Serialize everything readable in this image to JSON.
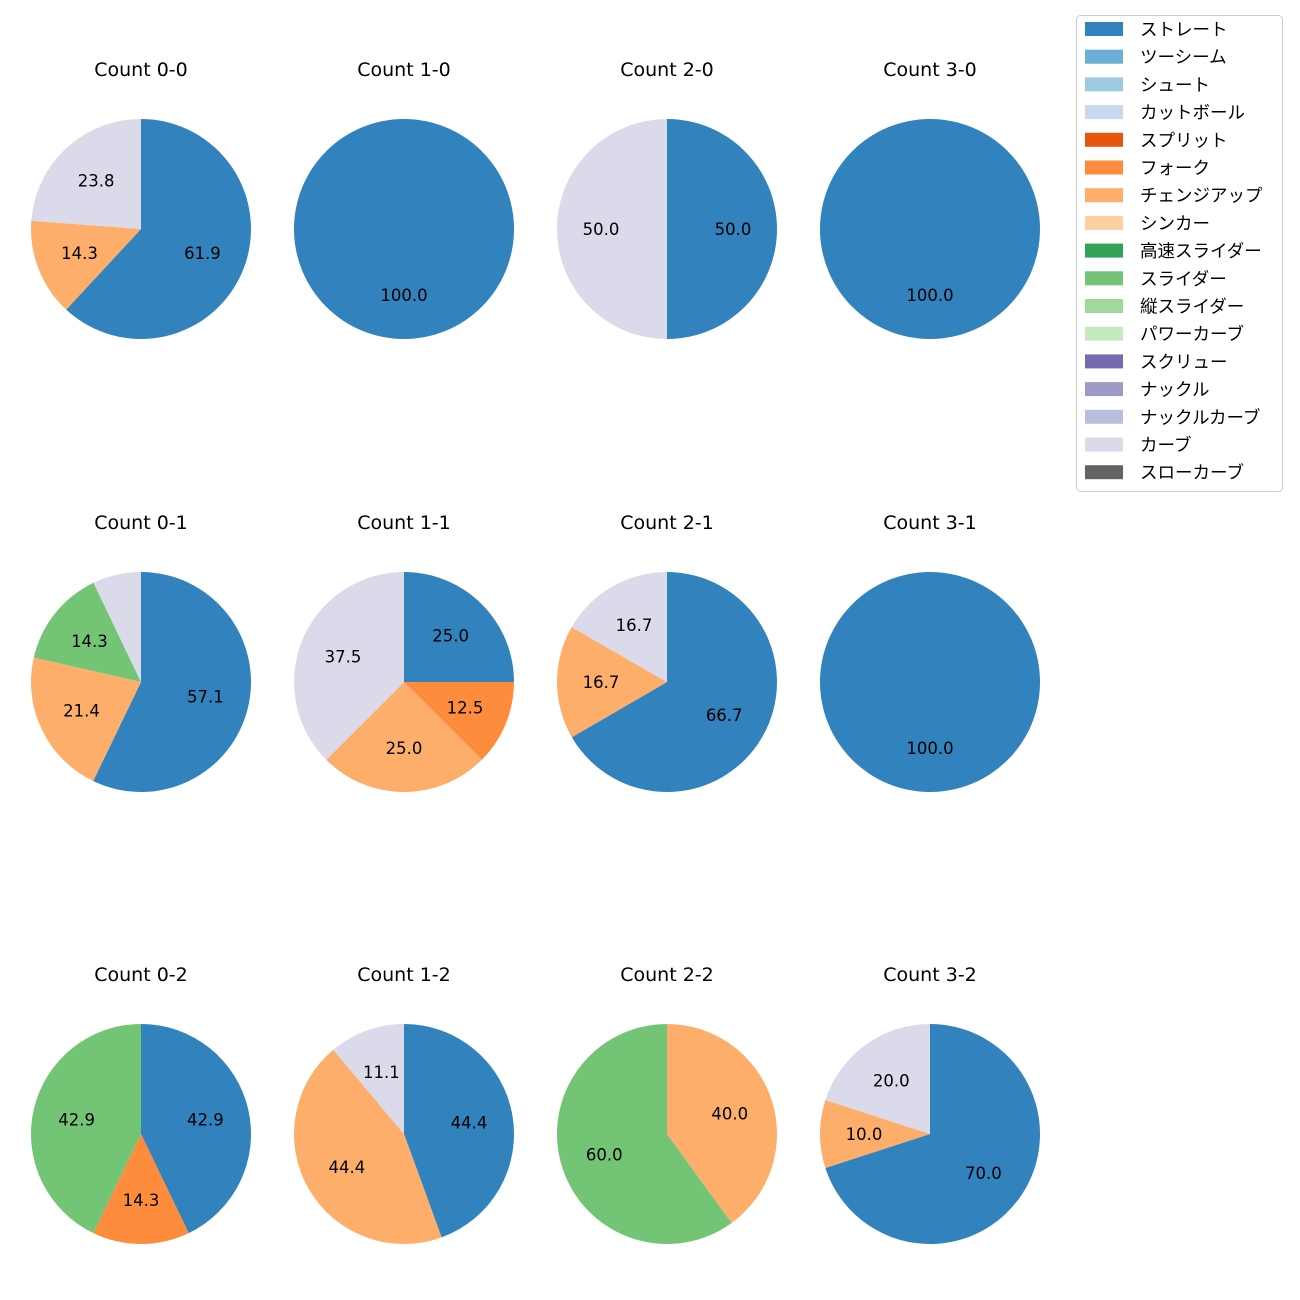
{
  "legend": {
    "items": [
      {
        "label": "ストレート",
        "color": "#3182bd"
      },
      {
        "label": "ツーシーム",
        "color": "#6baed6"
      },
      {
        "label": "シュート",
        "color": "#9ecae1"
      },
      {
        "label": "カットボール",
        "color": "#c6dbef"
      },
      {
        "label": "スプリット",
        "color": "#e6550d"
      },
      {
        "label": "フォーク",
        "color": "#fd8d3c"
      },
      {
        "label": "チェンジアップ",
        "color": "#fdae6b"
      },
      {
        "label": "シンカー",
        "color": "#fdd0a2"
      },
      {
        "label": "高速スライダー",
        "color": "#31a354"
      },
      {
        "label": "スライダー",
        "color": "#74c476"
      },
      {
        "label": "縦スライダー",
        "color": "#a1d99b"
      },
      {
        "label": "パワーカーブ",
        "color": "#c7e9c0"
      },
      {
        "label": "スクリュー",
        "color": "#756bb1"
      },
      {
        "label": "ナックル",
        "color": "#9e9ac8"
      },
      {
        "label": "ナックルカーブ",
        "color": "#bcbddc"
      },
      {
        "label": "カーブ",
        "color": "#dadaeb"
      },
      {
        "label": "スローカーブ",
        "color": "#636363"
      }
    ]
  },
  "chart_data": [
    {
      "type": "pie",
      "title": "Count 0-0",
      "slices": [
        {
          "category": "ストレート",
          "value": 61.9
        },
        {
          "category": "チェンジアップ",
          "value": 14.3
        },
        {
          "category": "カーブ",
          "value": 23.8
        }
      ]
    },
    {
      "type": "pie",
      "title": "Count 1-0",
      "slices": [
        {
          "category": "ストレート",
          "value": 100.0
        }
      ]
    },
    {
      "type": "pie",
      "title": "Count 2-0",
      "slices": [
        {
          "category": "ストレート",
          "value": 50.0
        },
        {
          "category": "カーブ",
          "value": 50.0
        }
      ]
    },
    {
      "type": "pie",
      "title": "Count 3-0",
      "slices": [
        {
          "category": "ストレート",
          "value": 100.0
        }
      ]
    },
    {
      "type": "pie",
      "title": "Count 0-1",
      "slices": [
        {
          "category": "ストレート",
          "value": 57.1
        },
        {
          "category": "チェンジアップ",
          "value": 21.4
        },
        {
          "category": "スライダー",
          "value": 14.3
        },
        {
          "category": "カーブ",
          "value": 7.1,
          "label": ""
        }
      ]
    },
    {
      "type": "pie",
      "title": "Count 1-1",
      "slices": [
        {
          "category": "ストレート",
          "value": 25.0
        },
        {
          "category": "フォーク",
          "value": 12.5
        },
        {
          "category": "チェンジアップ",
          "value": 25.0
        },
        {
          "category": "カーブ",
          "value": 37.5
        }
      ]
    },
    {
      "type": "pie",
      "title": "Count 2-1",
      "slices": [
        {
          "category": "ストレート",
          "value": 66.7
        },
        {
          "category": "チェンジアップ",
          "value": 16.7
        },
        {
          "category": "カーブ",
          "value": 16.7
        }
      ]
    },
    {
      "type": "pie",
      "title": "Count 3-1",
      "slices": [
        {
          "category": "ストレート",
          "value": 100.0
        }
      ]
    },
    {
      "type": "pie",
      "title": "Count 0-2",
      "slices": [
        {
          "category": "ストレート",
          "value": 42.9
        },
        {
          "category": "フォーク",
          "value": 14.3
        },
        {
          "category": "スライダー",
          "value": 42.9
        }
      ]
    },
    {
      "type": "pie",
      "title": "Count 1-2",
      "slices": [
        {
          "category": "ストレート",
          "value": 44.4
        },
        {
          "category": "チェンジアップ",
          "value": 44.4
        },
        {
          "category": "カーブ",
          "value": 11.1
        }
      ]
    },
    {
      "type": "pie",
      "title": "Count 2-2",
      "slices": [
        {
          "category": "チェンジアップ",
          "value": 40.0
        },
        {
          "category": "スライダー",
          "value": 60.0
        }
      ]
    },
    {
      "type": "pie",
      "title": "Count 3-2",
      "slices": [
        {
          "category": "ストレート",
          "value": 70.0
        },
        {
          "category": "チェンジアップ",
          "value": 10.0
        },
        {
          "category": "カーブ",
          "value": 20.0
        }
      ]
    }
  ]
}
